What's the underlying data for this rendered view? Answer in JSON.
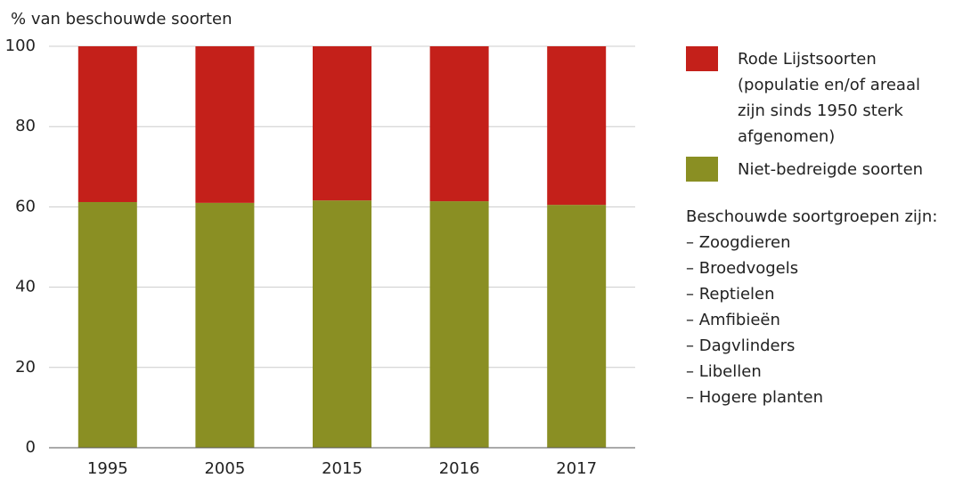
{
  "chart_data": {
    "type": "stacked_bar",
    "y_axis_label": "% van beschouwde soorten",
    "categories": [
      "1995",
      "2005",
      "2015",
      "2016",
      "2017"
    ],
    "series": [
      {
        "name": "Niet-bedreigde soorten",
        "color": "#8a8f23",
        "values": [
          61.2,
          61.0,
          61.6,
          61.4,
          60.5
        ]
      },
      {
        "name": "Rode Lijstsoorten (populatie en/of areaal zijn sinds 1950 sterk afgenomen)",
        "color": "#c4201a",
        "values": [
          38.8,
          39.0,
          38.4,
          38.6,
          39.5
        ]
      }
    ],
    "ylim": [
      0,
      100
    ],
    "yticks": [
      0,
      20,
      40,
      60,
      80,
      100
    ],
    "grid": true,
    "note": {
      "title": "Beschouwde soortgroepen zijn:",
      "items": [
        "– Zoogdieren",
        "– Broedvogels",
        "– Reptielen",
        "– Amfibieën",
        "– Dagvlinders",
        "– Libellen",
        "– Hogere planten"
      ]
    }
  }
}
